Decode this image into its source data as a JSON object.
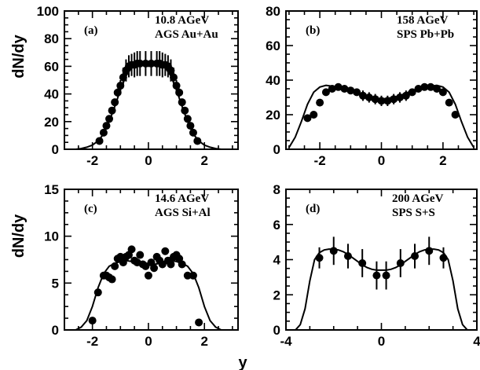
{
  "chart_data": [
    {
      "type": "scatter",
      "panel_label": "(a)",
      "annotation": [
        "10.8 AGeV",
        "AGS Au+Au"
      ],
      "ylabel": "dN/dy",
      "xlabel": "",
      "xlim": [
        -3,
        3.2
      ],
      "ylim": [
        0,
        100
      ],
      "xticks": [
        "-2",
        "0",
        "2"
      ],
      "yticks": [
        "0",
        "20",
        "40",
        "60",
        "80",
        "100"
      ],
      "grid": false,
      "series": [
        {
          "kind": "points",
          "x": [
            -1.75,
            -1.6,
            -1.5,
            -1.4,
            -1.3,
            -1.2,
            -1.1,
            -1.0,
            -0.9,
            -0.8,
            -0.7,
            -0.6,
            -0.5,
            -0.4,
            -0.3,
            -0.1,
            0.1,
            0.3,
            0.4,
            0.5,
            0.6,
            0.7,
            0.8,
            0.9,
            1.0,
            1.1,
            1.2,
            1.3,
            1.4,
            1.5,
            1.6,
            1.75
          ],
          "y": [
            6,
            12,
            17,
            22,
            28,
            34,
            41,
            46,
            52,
            57,
            60,
            61,
            61,
            62,
            62,
            62,
            62,
            62,
            62,
            61,
            61,
            60,
            57,
            52,
            46,
            41,
            34,
            28,
            22,
            17,
            12,
            6
          ],
          "yerr": [
            0,
            0,
            0,
            0,
            0,
            0,
            3,
            4,
            7,
            8,
            8,
            8,
            9,
            9,
            9,
            9,
            9,
            9,
            9,
            9,
            8,
            8,
            8,
            7,
            4,
            3,
            0,
            0,
            0,
            0,
            0,
            0
          ]
        },
        {
          "kind": "curve",
          "x": [
            -2.6,
            -2.4,
            -2.2,
            -2.0,
            -1.8,
            -1.6,
            -1.4,
            -1.2,
            -1.0,
            -0.8,
            -0.6,
            -0.4,
            -0.2,
            0.0,
            0.2,
            0.4,
            0.6,
            0.8,
            1.0,
            1.2,
            1.4,
            1.6,
            1.8,
            2.0,
            2.2,
            2.4,
            2.6
          ],
          "y": [
            0,
            0.5,
            1.5,
            3,
            6,
            11,
            20,
            31,
            43,
            53,
            59,
            61,
            61,
            60,
            61,
            61,
            59,
            53,
            43,
            31,
            20,
            11,
            6,
            3,
            1.5,
            0.5,
            0
          ]
        }
      ]
    },
    {
      "type": "scatter",
      "panel_label": "(b)",
      "annotation": [
        "158 AGeV",
        "SPS Pb+Pb"
      ],
      "ylabel": "",
      "xlabel": "",
      "xlim": [
        -3.1,
        3.1
      ],
      "ylim": [
        0,
        80
      ],
      "xticks": [
        "-2",
        "0",
        "2"
      ],
      "yticks": [
        "0",
        "20",
        "40",
        "60",
        "80"
      ],
      "grid": false,
      "series": [
        {
          "kind": "points",
          "x": [
            -2.4,
            -2.2,
            -2.0,
            -1.8,
            -1.6,
            -1.4,
            -1.2,
            -1.0,
            -0.8,
            -0.6,
            -0.4,
            -0.2,
            0.0,
            0.2,
            0.4,
            0.6,
            0.8,
            1.0,
            1.2,
            1.4,
            1.6,
            1.8,
            2.0,
            2.2,
            2.4
          ],
          "y": [
            18,
            20,
            27,
            33,
            35,
            36,
            35,
            34,
            33,
            31,
            30,
            29,
            28,
            28,
            29,
            30,
            31,
            33,
            35,
            36,
            36,
            35,
            33,
            27,
            20
          ],
          "yerr": [
            0,
            0,
            0,
            0,
            0,
            0,
            0,
            0,
            0,
            3,
            3,
            3,
            3,
            3,
            3,
            3,
            3,
            0,
            0,
            0,
            0,
            0,
            0,
            0,
            0
          ]
        },
        {
          "kind": "curve",
          "x": [
            -3.0,
            -2.8,
            -2.6,
            -2.4,
            -2.2,
            -2.0,
            -1.8,
            -1.6,
            -1.4,
            -1.2,
            -1.0,
            -0.8,
            -0.6,
            -0.4,
            -0.2,
            0.0,
            0.2,
            0.4,
            0.6,
            0.8,
            1.0,
            1.2,
            1.4,
            1.6,
            1.8,
            2.0,
            2.2,
            2.4,
            2.6,
            2.8,
            3.0
          ],
          "y": [
            1,
            7,
            16,
            26,
            33,
            36,
            37,
            36.5,
            36,
            35,
            34,
            32.5,
            31,
            30,
            29.5,
            29,
            29.5,
            30,
            31,
            32.5,
            34,
            35,
            36,
            36.5,
            37,
            36,
            33,
            26,
            16,
            7,
            1
          ]
        }
      ]
    },
    {
      "type": "scatter",
      "panel_label": "(c)",
      "annotation": [
        "14.6 AGeV",
        "AGS Si+Al"
      ],
      "ylabel": "dN/dy",
      "xlabel": "",
      "xlim": [
        -3,
        3.2
      ],
      "ylim": [
        0,
        15
      ],
      "xticks": [
        "-2",
        "0",
        "2"
      ],
      "yticks": [
        "0",
        "5",
        "10",
        "15"
      ],
      "grid": false,
      "series": [
        {
          "kind": "points",
          "x": [
            -2.0,
            -1.8,
            -1.6,
            -1.5,
            -1.4,
            -1.3,
            -1.2,
            -1.1,
            -1.0,
            -0.9,
            -0.8,
            -0.7,
            -0.6,
            -0.5,
            -0.4,
            -0.3,
            -0.2,
            -0.1,
            0.0,
            0.1,
            0.2,
            0.3,
            0.4,
            0.5,
            0.6,
            0.7,
            0.8,
            0.9,
            1.0,
            1.1,
            1.2,
            1.4,
            1.6,
            1.8
          ],
          "y": [
            1.0,
            4.0,
            5.8,
            5.8,
            5.6,
            5.4,
            6.8,
            7.6,
            7.8,
            7.2,
            7.8,
            8.0,
            8.6,
            7.4,
            7.2,
            8.0,
            7.0,
            6.8,
            5.8,
            7.2,
            6.6,
            7.8,
            7.4,
            7.0,
            8.4,
            7.4,
            7.0,
            7.8,
            8.0,
            7.6,
            7.0,
            5.8,
            5.8,
            0.8
          ],
          "yerr": []
        },
        {
          "kind": "curve",
          "x": [
            -2.6,
            -2.4,
            -2.2,
            -2.0,
            -1.8,
            -1.6,
            -1.4,
            -1.2,
            -1.0,
            -0.8,
            -0.6,
            -0.4,
            -0.2,
            0.0,
            0.2,
            0.4,
            0.6,
            0.8,
            1.0,
            1.2,
            1.4,
            1.6,
            1.8,
            2.0,
            2.2,
            2.4,
            2.6
          ],
          "y": [
            0,
            0.3,
            1.0,
            2.5,
            4.5,
            6.0,
            6.8,
            7.1,
            7.3,
            7.4,
            7.3,
            7.1,
            7.0,
            7.0,
            7.0,
            7.1,
            7.3,
            7.4,
            7.3,
            7.1,
            6.8,
            6.0,
            4.5,
            2.5,
            1.0,
            0.3,
            0
          ]
        }
      ]
    },
    {
      "type": "scatter",
      "panel_label": "(d)",
      "annotation": [
        "200 AGeV",
        "SPS S+S"
      ],
      "ylabel": "",
      "xlabel": "y",
      "xlim": [
        -4,
        4
      ],
      "ylim": [
        0,
        8
      ],
      "xticks": [
        "-4",
        "0",
        "4"
      ],
      "yticks": [
        "0",
        "2",
        "4",
        "6",
        "8"
      ],
      "grid": false,
      "series": [
        {
          "kind": "points",
          "x": [
            -2.6,
            -2.0,
            -1.4,
            -0.8,
            -0.2,
            0.2,
            0.8,
            1.4,
            2.0,
            2.6
          ],
          "y": [
            4.1,
            4.5,
            4.2,
            3.8,
            3.1,
            3.1,
            3.8,
            4.2,
            4.5,
            4.1
          ],
          "yerr": [
            0.6,
            0.8,
            0.7,
            0.8,
            0.8,
            0.8,
            0.8,
            0.7,
            0.8,
            0.6
          ]
        },
        {
          "kind": "curve",
          "x": [
            -3.6,
            -3.4,
            -3.2,
            -3.0,
            -2.8,
            -2.6,
            -2.4,
            -2.2,
            -2.0,
            -1.8,
            -1.6,
            -1.4,
            -1.2,
            -1.0,
            -0.8,
            -0.6,
            -0.4,
            -0.2,
            0.0,
            0.2,
            0.4,
            0.6,
            0.8,
            1.0,
            1.2,
            1.4,
            1.6,
            1.8,
            2.0,
            2.2,
            2.4,
            2.6,
            2.8,
            3.0,
            3.2,
            3.4,
            3.6
          ],
          "y": [
            0,
            0.3,
            1.2,
            2.8,
            4.0,
            4.4,
            4.55,
            4.6,
            4.6,
            4.55,
            4.45,
            4.3,
            4.1,
            3.9,
            3.7,
            3.55,
            3.45,
            3.4,
            3.4,
            3.4,
            3.45,
            3.55,
            3.7,
            3.9,
            4.1,
            4.3,
            4.45,
            4.55,
            4.6,
            4.6,
            4.55,
            4.4,
            4.0,
            2.8,
            1.2,
            0.3,
            0
          ]
        }
      ]
    }
  ]
}
